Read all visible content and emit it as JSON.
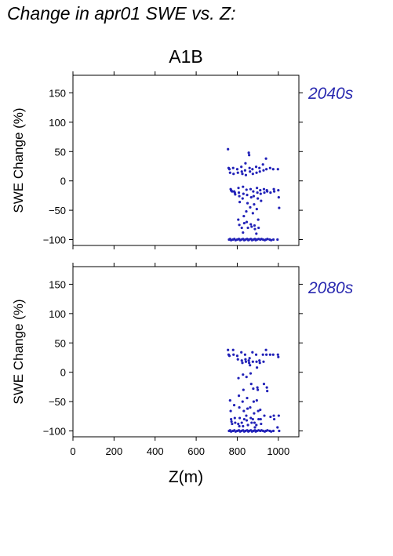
{
  "title": "Change in apr01 SWE vs. Z:",
  "chart_data": {
    "type": "scatter",
    "scenario": "A1B",
    "xlabel": "Z(m)",
    "ylabel": "SWE Change (%)",
    "xlim": [
      0,
      1100
    ],
    "ylim": [
      -110,
      180
    ],
    "x_ticks": [
      0,
      200,
      400,
      600,
      800,
      1000
    ],
    "y_ticks": [
      -100,
      -50,
      0,
      50,
      100,
      150
    ],
    "grid": false,
    "marker_color": "#2222b8",
    "panels": [
      {
        "name": "2040s",
        "points": [
          [
            755,
            54
          ],
          [
            758,
            22
          ],
          [
            762,
            20
          ],
          [
            765,
            14
          ],
          [
            768,
            -14
          ],
          [
            770,
            -16
          ],
          [
            772,
            -17
          ],
          [
            775,
            -18
          ],
          [
            760,
            -100
          ],
          [
            765,
            -99
          ],
          [
            770,
            -101
          ],
          [
            780,
            22
          ],
          [
            782,
            12
          ],
          [
            785,
            -18
          ],
          [
            788,
            -20
          ],
          [
            790,
            -23
          ],
          [
            779,
            -100
          ],
          [
            786,
            -99
          ],
          [
            792,
            -101
          ],
          [
            800,
            20
          ],
          [
            803,
            14
          ],
          [
            806,
            -12
          ],
          [
            808,
            -20
          ],
          [
            810,
            -26
          ],
          [
            812,
            -36
          ],
          [
            805,
            -66
          ],
          [
            810,
            -75
          ],
          [
            800,
            -100
          ],
          [
            808,
            -99
          ],
          [
            814,
            -101
          ],
          [
            820,
            24
          ],
          [
            822,
            16
          ],
          [
            825,
            12
          ],
          [
            828,
            -10
          ],
          [
            830,
            -22
          ],
          [
            826,
            -30
          ],
          [
            832,
            -60
          ],
          [
            834,
            -72
          ],
          [
            822,
            -80
          ],
          [
            828,
            -88
          ],
          [
            820,
            -100
          ],
          [
            828,
            -99
          ],
          [
            834,
            -101
          ],
          [
            838,
            18
          ],
          [
            840,
            30
          ],
          [
            842,
            10
          ],
          [
            845,
            -15
          ],
          [
            848,
            -24
          ],
          [
            850,
            -38
          ],
          [
            844,
            -52
          ],
          [
            846,
            -70
          ],
          [
            852,
            -80
          ],
          [
            840,
            -100
          ],
          [
            848,
            -99
          ],
          [
            854,
            -101
          ],
          [
            856,
            48
          ],
          [
            858,
            44
          ],
          [
            860,
            22
          ],
          [
            862,
            16
          ],
          [
            865,
            -14
          ],
          [
            868,
            -28
          ],
          [
            863,
            -45
          ],
          [
            866,
            -74
          ],
          [
            870,
            -78
          ],
          [
            858,
            -100
          ],
          [
            866,
            -99
          ],
          [
            872,
            -101
          ],
          [
            874,
            20
          ],
          [
            876,
            12
          ],
          [
            878,
            -18
          ],
          [
            880,
            -26
          ],
          [
            882,
            -40
          ],
          [
            876,
            -55
          ],
          [
            884,
            -76
          ],
          [
            886,
            -82
          ],
          [
            878,
            -100
          ],
          [
            886,
            -99
          ],
          [
            890,
            -101
          ],
          [
            892,
            24
          ],
          [
            894,
            14
          ],
          [
            896,
            -12
          ],
          [
            898,
            -20
          ],
          [
            900,
            -30
          ],
          [
            895,
            -48
          ],
          [
            902,
            -66
          ],
          [
            904,
            -80
          ],
          [
            893,
            -90
          ],
          [
            896,
            -100
          ],
          [
            904,
            -99
          ],
          [
            908,
            22
          ],
          [
            910,
            16
          ],
          [
            912,
            -16
          ],
          [
            914,
            -22
          ],
          [
            916,
            -34
          ],
          [
            912,
            -100
          ],
          [
            918,
            -99
          ],
          [
            925,
            28
          ],
          [
            928,
            18
          ],
          [
            930,
            -14
          ],
          [
            932,
            -20
          ],
          [
            926,
            -100
          ],
          [
            934,
            -101
          ],
          [
            940,
            38
          ],
          [
            942,
            20
          ],
          [
            944,
            -16
          ],
          [
            946,
            -18
          ],
          [
            940,
            -100
          ],
          [
            947,
            -99
          ],
          [
            960,
            22
          ],
          [
            962,
            -20
          ],
          [
            958,
            -100
          ],
          [
            965,
            -101
          ],
          [
            975,
            20
          ],
          [
            978,
            -14
          ],
          [
            980,
            -18
          ],
          [
            976,
            -100
          ],
          [
            998,
            20
          ],
          [
            1000,
            -16
          ],
          [
            1002,
            -28
          ],
          [
            1004,
            -46
          ],
          [
            996,
            -100
          ]
        ]
      },
      {
        "name": "2080s",
        "points": [
          [
            755,
            38
          ],
          [
            758,
            30
          ],
          [
            762,
            28
          ],
          [
            765,
            -48
          ],
          [
            768,
            -66
          ],
          [
            770,
            -80
          ],
          [
            772,
            -84
          ],
          [
            775,
            -88
          ],
          [
            760,
            -100
          ],
          [
            765,
            -99
          ],
          [
            770,
            -101
          ],
          [
            780,
            38
          ],
          [
            782,
            30
          ],
          [
            785,
            -56
          ],
          [
            788,
            -78
          ],
          [
            790,
            -86
          ],
          [
            779,
            -100
          ],
          [
            786,
            -99
          ],
          [
            792,
            -101
          ],
          [
            800,
            28
          ],
          [
            803,
            22
          ],
          [
            806,
            -10
          ],
          [
            808,
            -40
          ],
          [
            810,
            -60
          ],
          [
            812,
            -78
          ],
          [
            805,
            -88
          ],
          [
            810,
            -92
          ],
          [
            800,
            -100
          ],
          [
            808,
            -99
          ],
          [
            814,
            -101
          ],
          [
            820,
            34
          ],
          [
            822,
            20
          ],
          [
            825,
            16
          ],
          [
            828,
            -4
          ],
          [
            830,
            -30
          ],
          [
            826,
            -50
          ],
          [
            832,
            -66
          ],
          [
            834,
            -80
          ],
          [
            822,
            -86
          ],
          [
            828,
            -92
          ],
          [
            820,
            -100
          ],
          [
            828,
            -99
          ],
          [
            834,
            -101
          ],
          [
            838,
            30
          ],
          [
            840,
            22
          ],
          [
            842,
            18
          ],
          [
            845,
            -8
          ],
          [
            848,
            -44
          ],
          [
            850,
            -62
          ],
          [
            844,
            -74
          ],
          [
            846,
            -82
          ],
          [
            852,
            -90
          ],
          [
            840,
            -100
          ],
          [
            848,
            -99
          ],
          [
            854,
            -101
          ],
          [
            856,
            20
          ],
          [
            858,
            16
          ],
          [
            860,
            24
          ],
          [
            862,
            12
          ],
          [
            865,
            -2
          ],
          [
            868,
            -20
          ],
          [
            863,
            -60
          ],
          [
            866,
            -78
          ],
          [
            870,
            -86
          ],
          [
            858,
            -100
          ],
          [
            866,
            -99
          ],
          [
            872,
            -101
          ],
          [
            874,
            34
          ],
          [
            876,
            18
          ],
          [
            878,
            -28
          ],
          [
            880,
            -50
          ],
          [
            882,
            -70
          ],
          [
            876,
            -80
          ],
          [
            884,
            -86
          ],
          [
            886,
            -94
          ],
          [
            878,
            -100
          ],
          [
            886,
            -99
          ],
          [
            890,
            -101
          ],
          [
            892,
            30
          ],
          [
            894,
            18
          ],
          [
            896,
            8
          ],
          [
            898,
            -26
          ],
          [
            900,
            -30
          ],
          [
            895,
            -48
          ],
          [
            902,
            -66
          ],
          [
            904,
            -80
          ],
          [
            893,
            -90
          ],
          [
            896,
            -100
          ],
          [
            904,
            -99
          ],
          [
            908,
            20
          ],
          [
            910,
            16
          ],
          [
            912,
            -64
          ],
          [
            914,
            -80
          ],
          [
            916,
            -88
          ],
          [
            912,
            -100
          ],
          [
            918,
            -99
          ],
          [
            925,
            30
          ],
          [
            928,
            18
          ],
          [
            930,
            -20
          ],
          [
            932,
            -74
          ],
          [
            926,
            -100
          ],
          [
            934,
            -101
          ],
          [
            940,
            38
          ],
          [
            942,
            30
          ],
          [
            944,
            -26
          ],
          [
            946,
            -32
          ],
          [
            940,
            -100
          ],
          [
            947,
            -99
          ],
          [
            960,
            30
          ],
          [
            962,
            -76
          ],
          [
            958,
            -100
          ],
          [
            965,
            -101
          ],
          [
            975,
            30
          ],
          [
            978,
            -74
          ],
          [
            980,
            -80
          ],
          [
            976,
            -100
          ],
          [
            998,
            30
          ],
          [
            1000,
            26
          ],
          [
            1002,
            -74
          ],
          [
            1004,
            -100
          ],
          [
            996,
            -94
          ]
        ]
      }
    ]
  }
}
